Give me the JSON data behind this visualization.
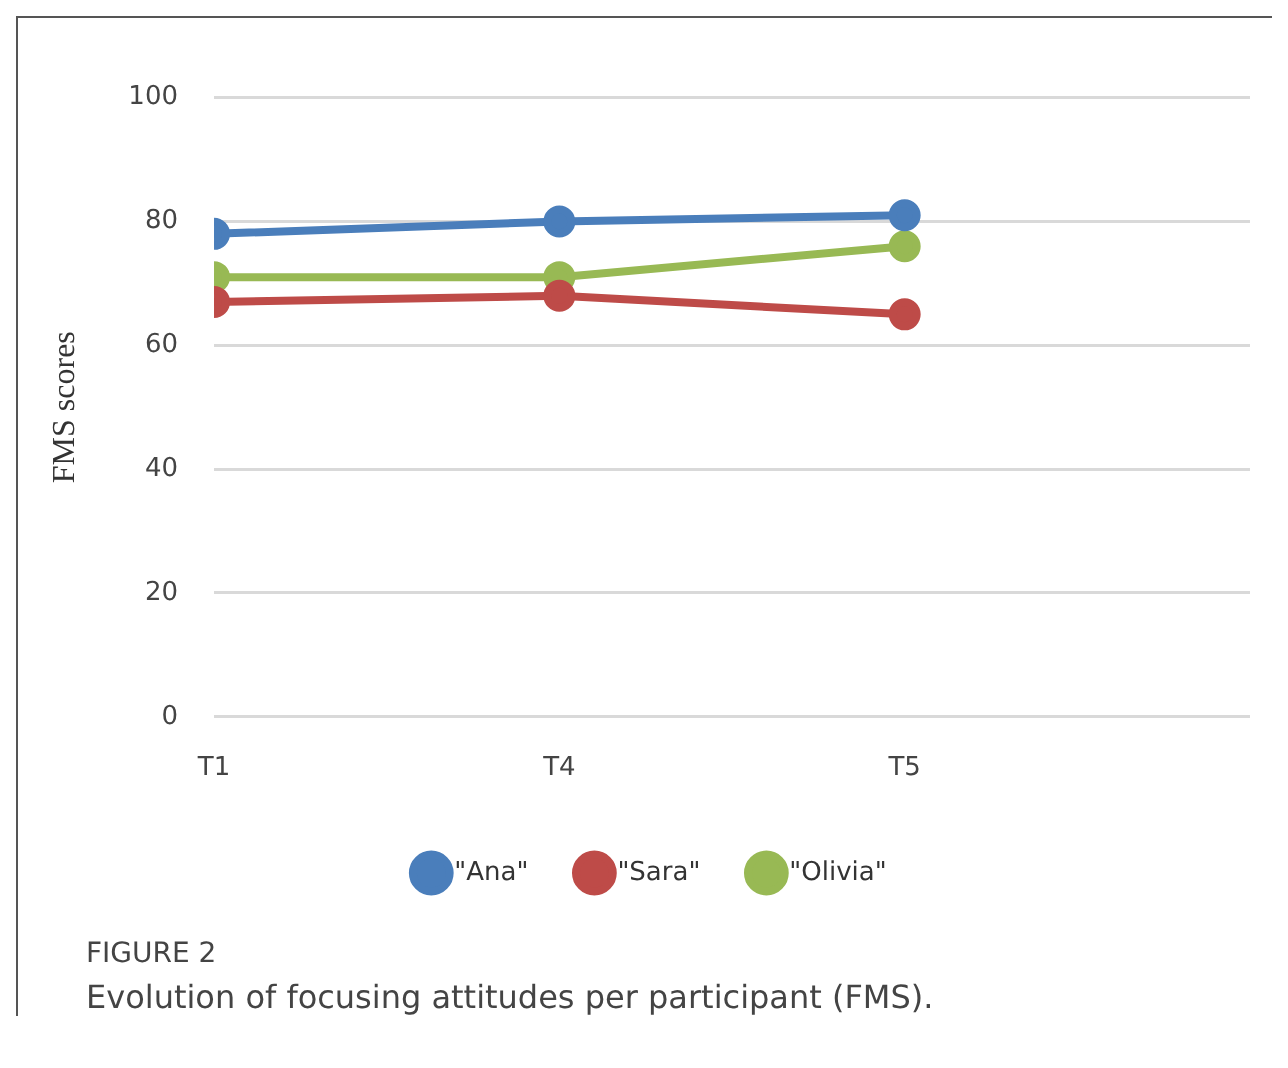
{
  "chart_data": {
    "type": "line",
    "ylabel": "FMS scores",
    "categories": [
      "T1",
      "T4",
      "T5",
      null
    ],
    "series": [
      {
        "name": "\"Ana\"",
        "color": "#4a7ebb",
        "values": [
          78,
          80,
          81,
          null
        ]
      },
      {
        "name": "\"Sara\"",
        "color": "#be4b48",
        "values": [
          67,
          68,
          65,
          null
        ]
      },
      {
        "name": "\"Olivia\"",
        "color": "#98b954",
        "values": [
          71,
          71,
          76,
          null
        ]
      }
    ],
    "ylim": [
      0,
      100
    ],
    "yticks": [
      0,
      20,
      40,
      60,
      80,
      100
    ],
    "grid": "y",
    "legend": "bottom",
    "marker": "circle",
    "line_style": "solid",
    "annotations": [
      "FIGURE 2",
      "Evolution of focusing attitudes per participant (FMS)."
    ]
  }
}
